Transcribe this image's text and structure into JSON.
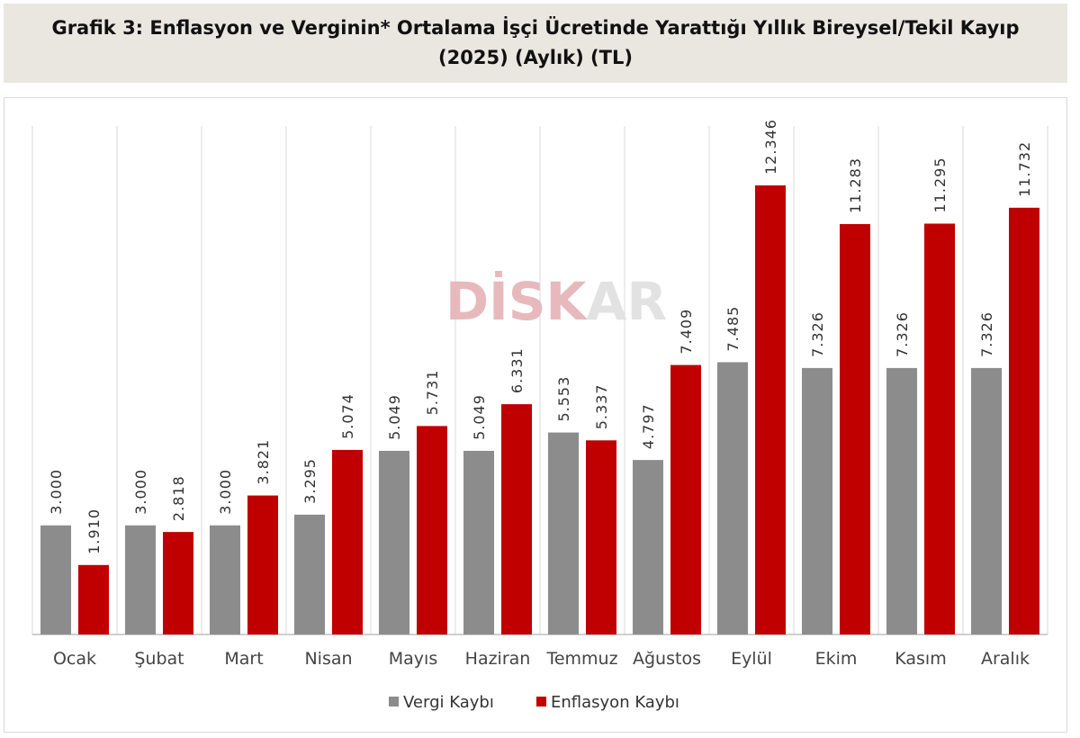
{
  "header": {
    "title_line1": "Grafik 3: Enflasyon ve Verginin* Ortalama İşçi Ücretinde Yarattığı Yıllık Bireysel/Tekil Kayıp",
    "title_line2": "(2025) (Aylık) (TL)"
  },
  "watermark": {
    "text_a": "DİSK",
    "text_b": "AR"
  },
  "colors": {
    "vergi": "#8c8c8c",
    "enflasyon": "#c00000",
    "gridline": "#d9d9d9",
    "axis": "#bfbfbf",
    "title_bg": "#eae7e1",
    "watermark_a": "#e7b9bd",
    "watermark_b": "#e2e2e2"
  },
  "chart_data": {
    "type": "bar",
    "categories": [
      "Ocak",
      "Şubat",
      "Mart",
      "Nisan",
      "Mayıs",
      "Haziran",
      "Temmuz",
      "Ağustos",
      "Eylül",
      "Ekim",
      "Kasım",
      "Aralık"
    ],
    "series": [
      {
        "name": "Vergi Kaybı",
        "values": [
          3000,
          3000,
          3000,
          3295,
          5049,
          5049,
          5553,
          4797,
          7485,
          7326,
          7326,
          7326
        ],
        "labels": [
          "3.000",
          "3.000",
          "3.000",
          "3.295",
          "5.049",
          "5.049",
          "5.553",
          "4.797",
          "7.485",
          "7.326",
          "7.326",
          "7.326"
        ]
      },
      {
        "name": "Enflasyon Kaybı",
        "values": [
          1910,
          2818,
          3821,
          5074,
          5731,
          6331,
          5337,
          7409,
          12346,
          11283,
          11295,
          11732
        ],
        "labels": [
          "1.910",
          "2.818",
          "3.821",
          "5.074",
          "5.731",
          "6.331",
          "5.337",
          "7.409",
          "12.346",
          "11.283",
          "11.295",
          "11.732"
        ]
      }
    ],
    "ylim": [
      0,
      14000
    ],
    "legend": "bottom",
    "grid": "vertical-category-separators"
  }
}
